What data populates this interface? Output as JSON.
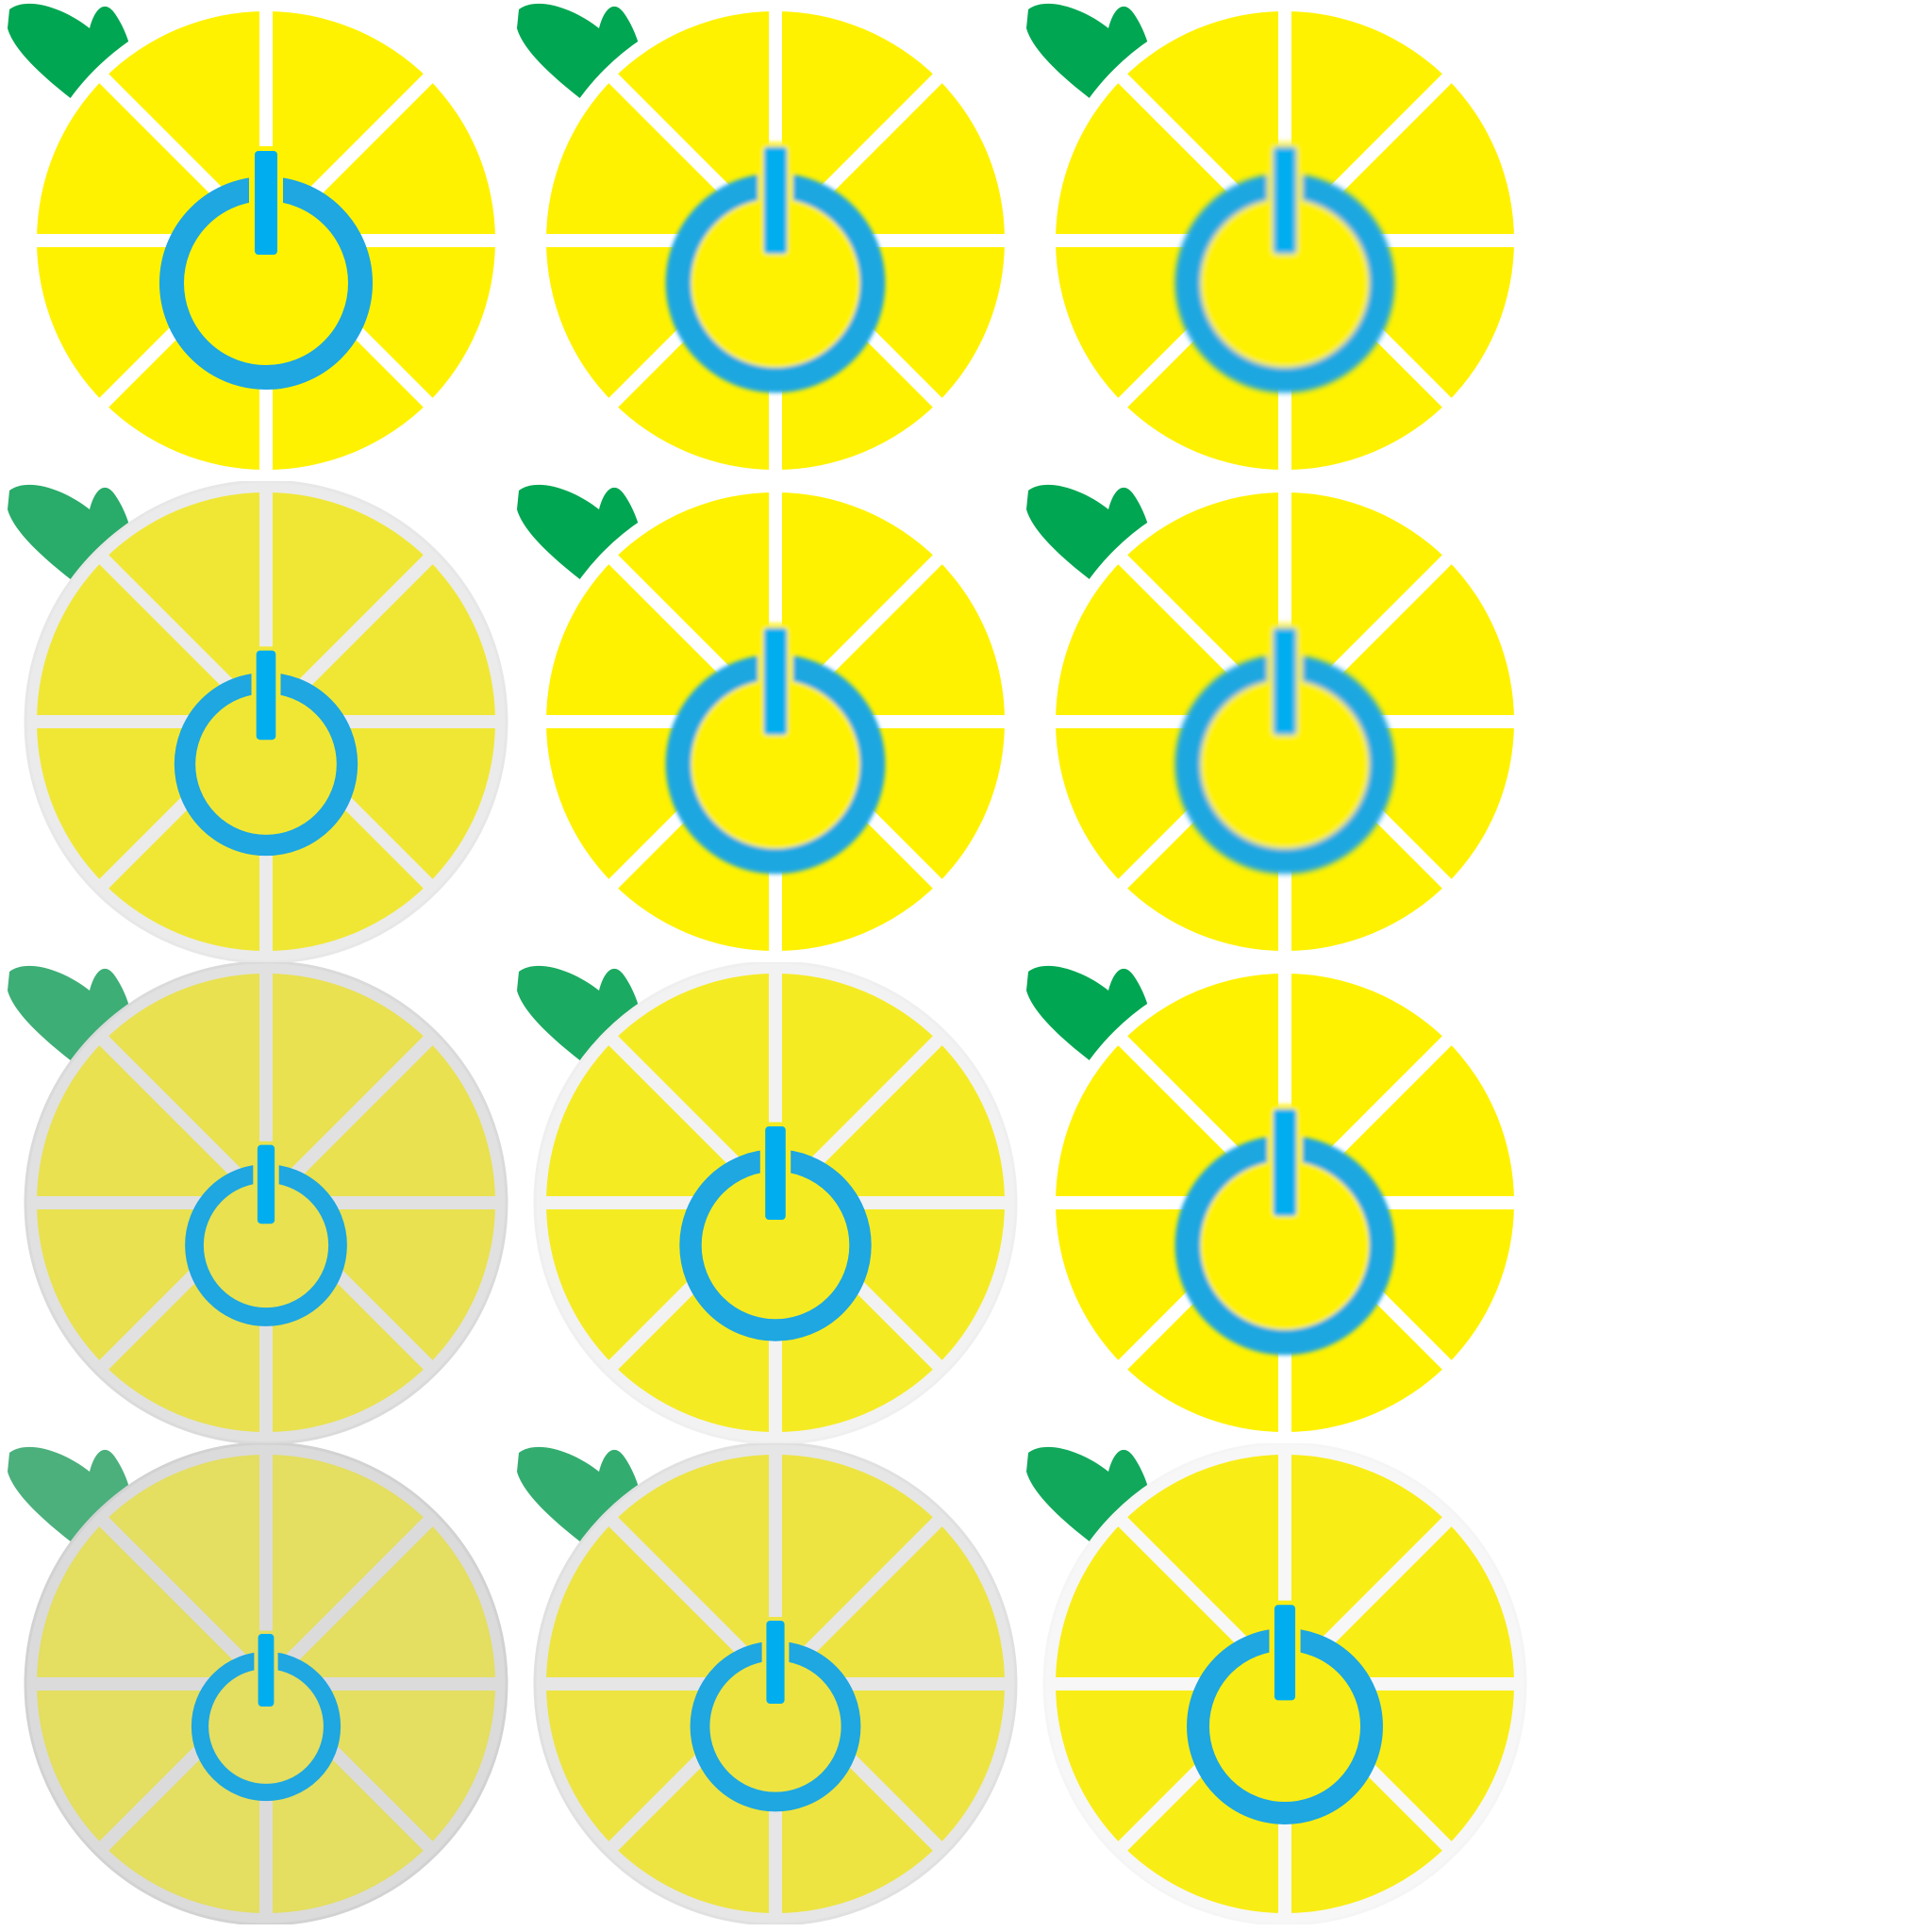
{
  "sprite_sheet": {
    "columns": 3,
    "rows": 4,
    "background": "#ffffff",
    "palette": {
      "lemon_yellow": "#fff200",
      "segment_divider": "#ffffff",
      "leaf_green": "#00a651",
      "power_blue": "#1ea7e1",
      "power_bar_blue": "#00aeef"
    },
    "icons": [
      {
        "name": "power-lemon-normal",
        "state": "normal",
        "fade": 0.0,
        "ring_scale": 1.0,
        "blur": 0
      },
      {
        "name": "power-lemon-glow-1",
        "state": "glow",
        "fade": 0.0,
        "ring_scale": 1.03,
        "blur": 2
      },
      {
        "name": "power-lemon-glow-2",
        "state": "glow",
        "fade": 0.0,
        "ring_scale": 1.03,
        "blur": 3
      },
      {
        "name": "power-lemon-dim-1",
        "state": "disabled",
        "fade": 0.12,
        "ring_scale": 0.86,
        "blur": 0
      },
      {
        "name": "power-lemon-glow-3",
        "state": "glow",
        "fade": 0.0,
        "ring_scale": 1.03,
        "blur": 2
      },
      {
        "name": "power-lemon-glow-4",
        "state": "glow",
        "fade": 0.0,
        "ring_scale": 1.03,
        "blur": 3
      },
      {
        "name": "power-lemon-dim-2",
        "state": "disabled",
        "fade": 0.18,
        "ring_scale": 0.76,
        "blur": 0
      },
      {
        "name": "power-lemon-dim-3",
        "state": "disabled",
        "fade": 0.08,
        "ring_scale": 0.9,
        "blur": 0
      },
      {
        "name": "power-lemon-glow-5",
        "state": "glow",
        "fade": 0.0,
        "ring_scale": 1.03,
        "blur": 2
      },
      {
        "name": "power-lemon-dim-4",
        "state": "disabled",
        "fade": 0.22,
        "ring_scale": 0.7,
        "blur": 0
      },
      {
        "name": "power-lemon-dim-5",
        "state": "disabled",
        "fade": 0.15,
        "ring_scale": 0.8,
        "blur": 0
      },
      {
        "name": "power-lemon-dim-6",
        "state": "disabled",
        "fade": 0.05,
        "ring_scale": 0.92,
        "blur": 0
      }
    ]
  }
}
